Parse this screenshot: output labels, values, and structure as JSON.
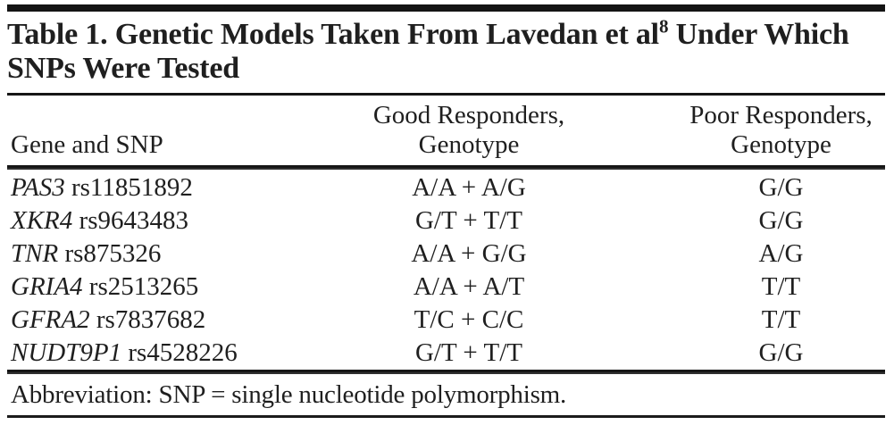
{
  "colors": {
    "text": "#1f1f1f",
    "rule": "#161616",
    "background": "#ffffff"
  },
  "table": {
    "title": {
      "part1": "Table 1. Genetic Models Taken From Lavedan et al",
      "superscript": "8",
      "part2": " Under Which SNPs Were Tested"
    },
    "header": {
      "col1": "Gene and SNP",
      "col2_line1": "Good Responders,",
      "col2_line2": "Genotype",
      "col3_line1": "Poor Responders,",
      "col3_line2": "Genotype"
    },
    "rows": [
      {
        "gene": "PAS3",
        "snp": "rs11851892",
        "good": "A/A + A/G",
        "poor": "G/G"
      },
      {
        "gene": "XKR4",
        "snp": "rs9643483",
        "good": "G/T + T/T",
        "poor": "G/G"
      },
      {
        "gene": "TNR",
        "snp": "rs875326",
        "good": "A/A + G/G",
        "poor": "A/G"
      },
      {
        "gene": "GRIA4",
        "snp": "rs2513265",
        "good": "A/A + A/T",
        "poor": "T/T"
      },
      {
        "gene": "GFRA2",
        "snp": "rs7837682",
        "good": "T/C + C/C",
        "poor": "T/T"
      },
      {
        "gene": "NUDT9P1",
        "snp": "rs4528226",
        "good": "G/T + T/T",
        "poor": "G/G"
      }
    ],
    "footnote": "Abbreviation: SNP = single nucleotide polymorphism."
  }
}
